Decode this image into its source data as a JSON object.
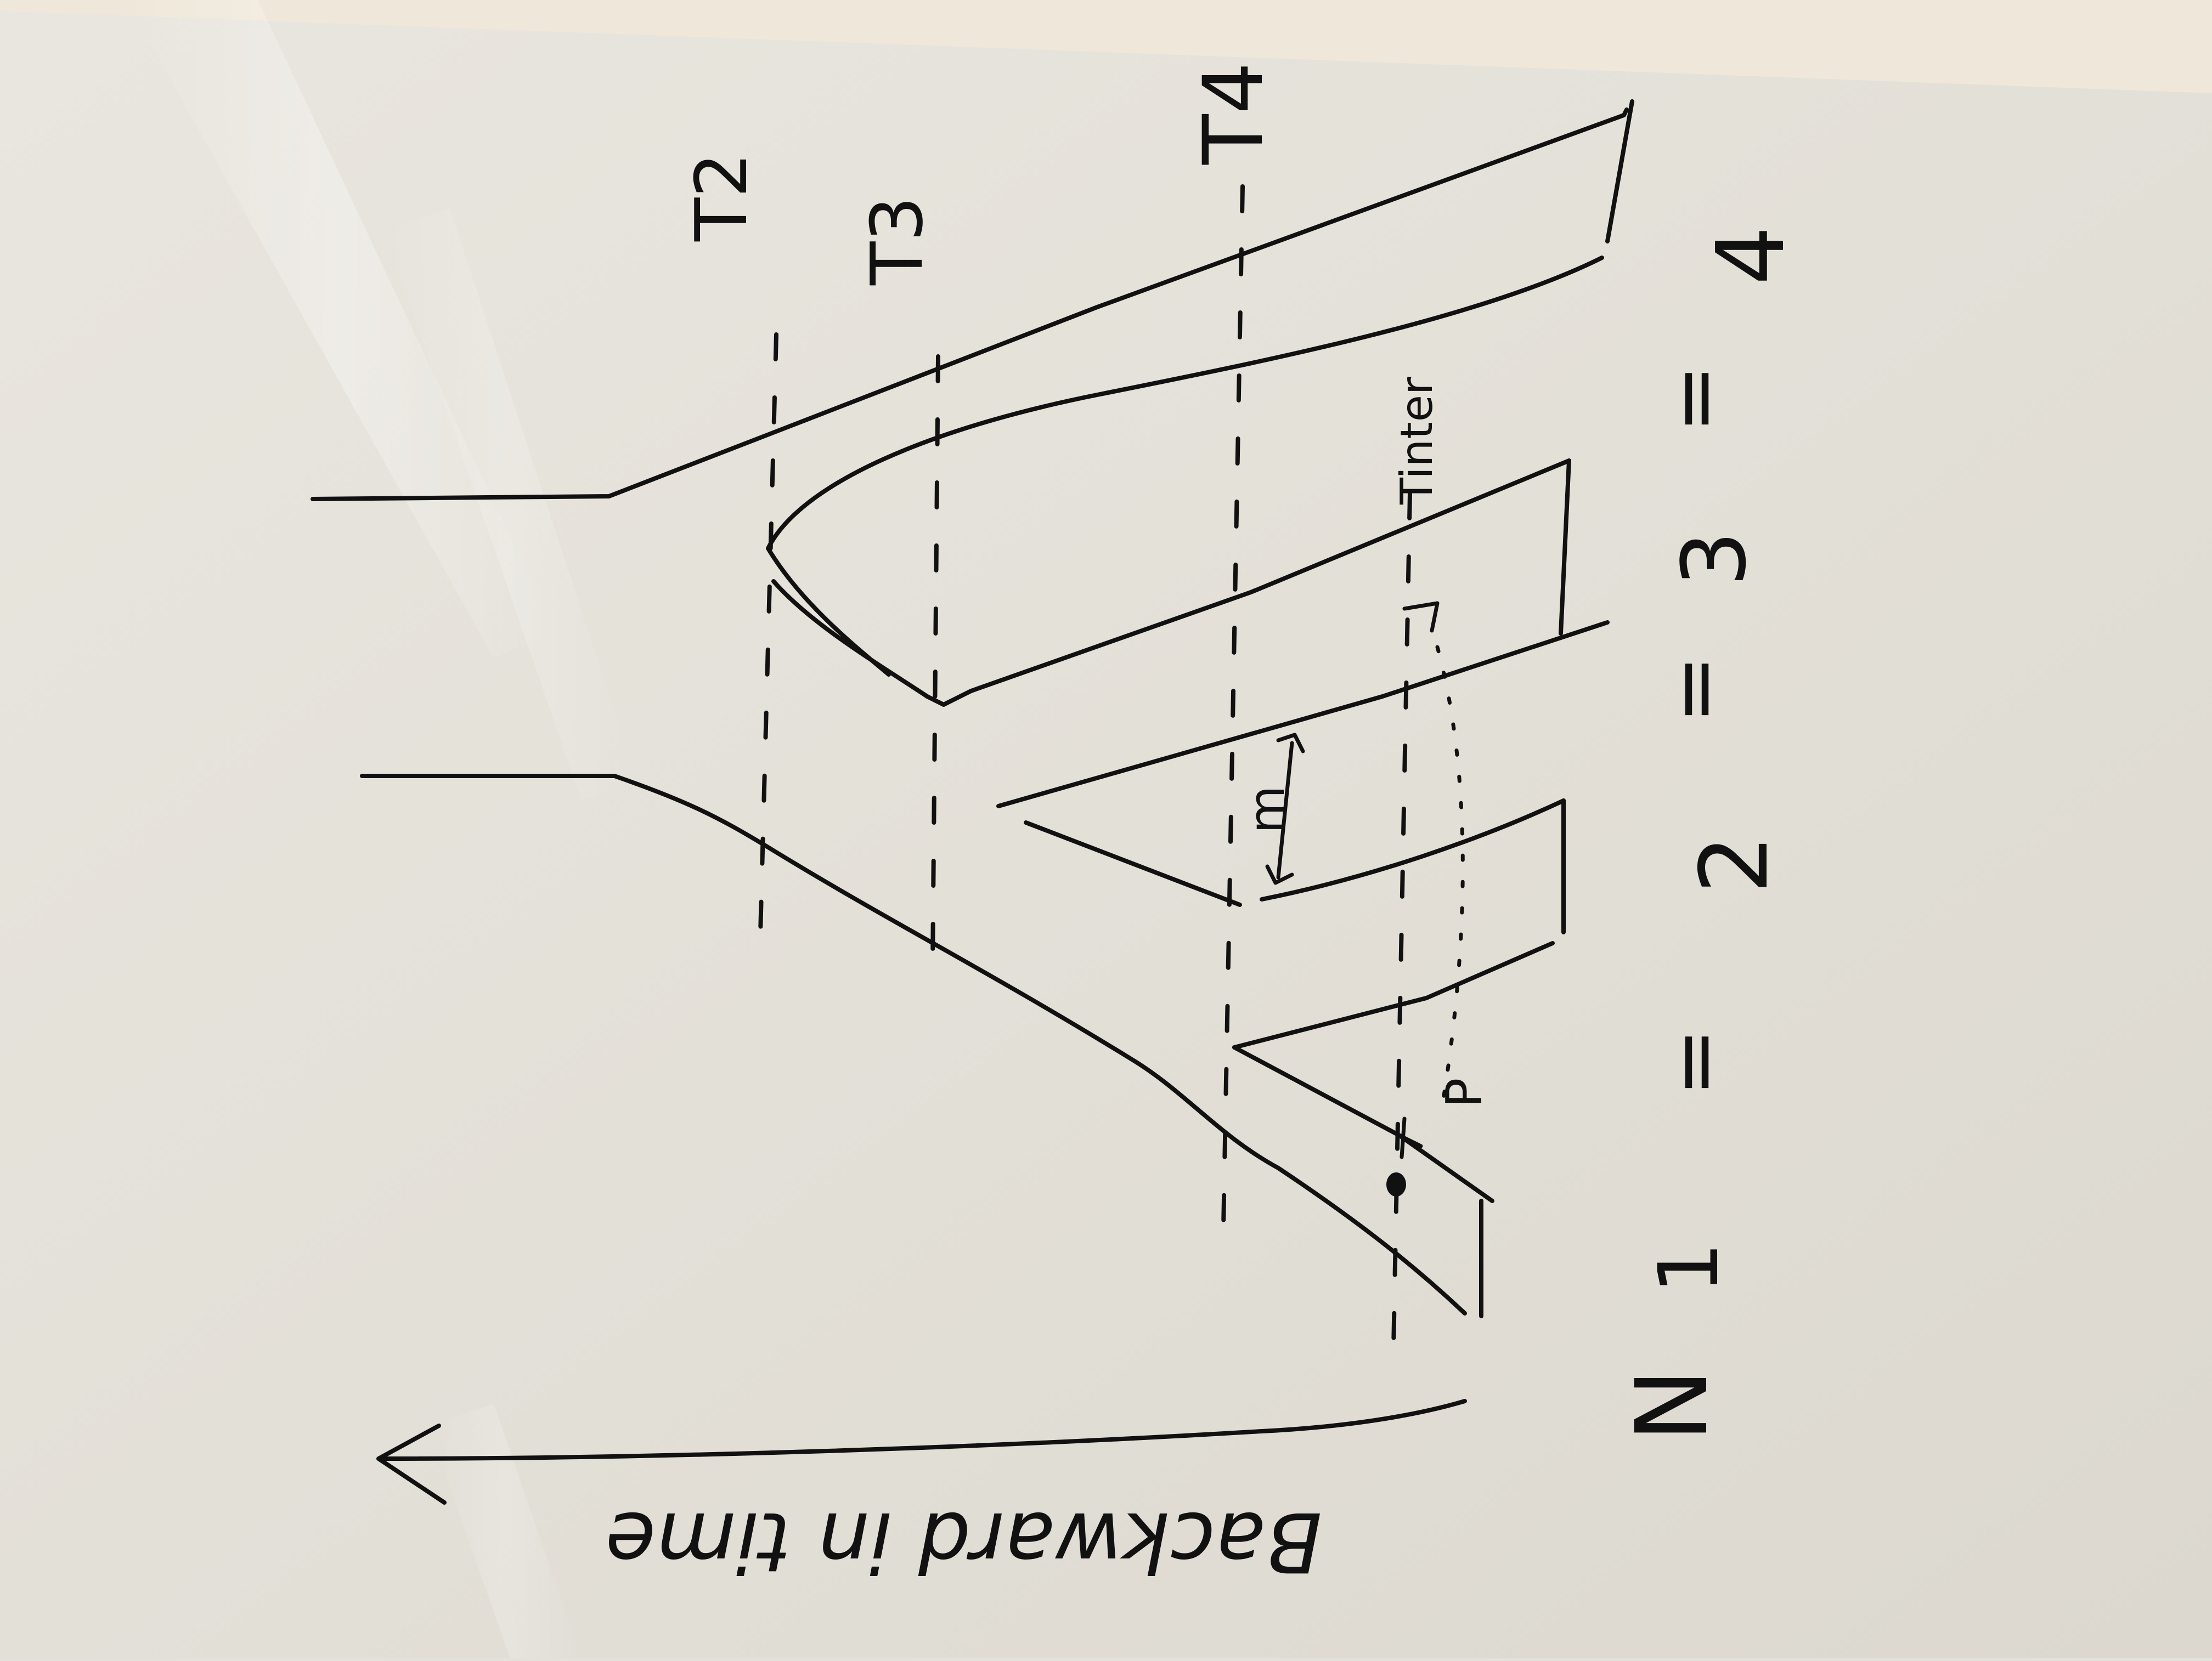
{
  "scene": {
    "kind": "whiteboard photo of a hand-drawn sketch",
    "board_color": "#e4e1da",
    "wall_color": "#efe8da",
    "ink_color": "#111111",
    "glare_color": "#ffffff"
  },
  "labels": {
    "t2": "T2",
    "t3": "T3",
    "t4": "T4",
    "tinter": "Tinter",
    "p": "P",
    "m": "m",
    "n4": "4",
    "n3": "3",
    "n2": "2",
    "n1": "1",
    "eq": "=",
    "n_label": "N",
    "axis_text": "Backward in time"
  }
}
